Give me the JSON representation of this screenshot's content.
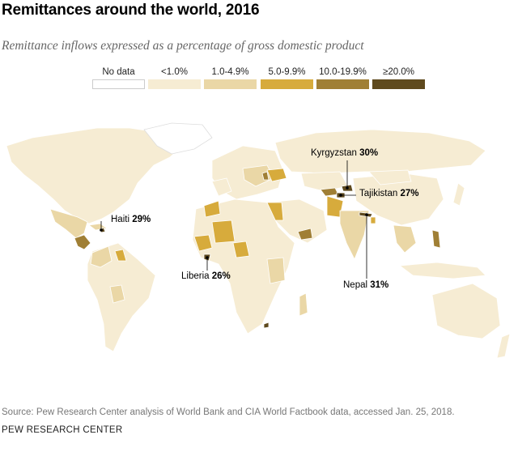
{
  "title": "Remittances around the world, 2016",
  "subtitle": "Remittance inflows expressed as a percentage of gross domestic product",
  "legend": [
    {
      "label": "No data",
      "color": "#ffffff",
      "border": "#cccccc"
    },
    {
      "label": "<1.0%",
      "color": "#f6ecd3",
      "border": "#f6ecd3"
    },
    {
      "label": "1.0-4.9%",
      "color": "#ead7a6",
      "border": "#ead7a6"
    },
    {
      "label": "5.0-9.9%",
      "color": "#d7ab3c",
      "border": "#d7ab3c"
    },
    {
      "label": "10.0-19.9%",
      "color": "#a07f35",
      "border": "#a07f35"
    },
    {
      "label": "≥20.0%",
      "color": "#5f4a1e",
      "border": "#5f4a1e"
    }
  ],
  "callouts": {
    "kyrgyzstan": {
      "name": "Kyrgyzstan",
      "value": "30%"
    },
    "tajikistan": {
      "name": "Tajikistan",
      "value": "27%"
    },
    "haiti": {
      "name": "Haiti",
      "value": "29%"
    },
    "liberia": {
      "name": "Liberia",
      "value": "26%"
    },
    "nepal": {
      "name": "Nepal",
      "value": "31%"
    }
  },
  "colors": {
    "land_light": "#f6ecd3",
    "land_mid": "#ead7a6",
    "land_gold": "#d7ab3c",
    "land_dark": "#a07f35",
    "land_darkest": "#5f4a1e",
    "border": "#ffffff"
  },
  "source": "Source: Pew Research Center analysis of World Bank and CIA World Factbook data, accessed Jan. 25, 2018.",
  "organization": "PEW RESEARCH CENTER"
}
